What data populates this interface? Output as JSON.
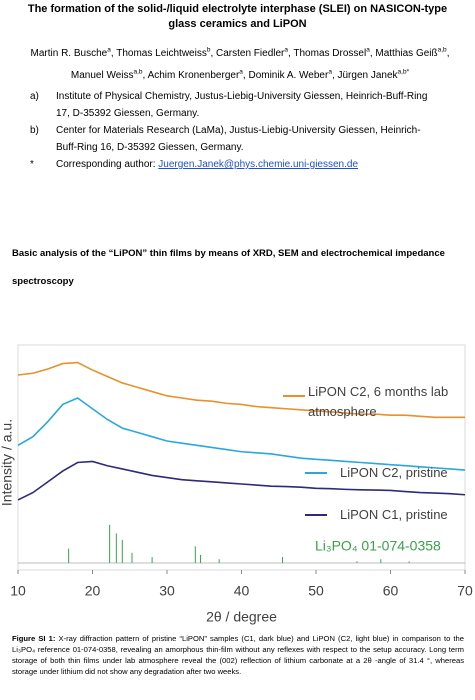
{
  "title": "The formation of the solid-/liquid electrolyte interphase (SLEI) on NASICON-type glass ceramics and LiPON",
  "authors": [
    {
      "name": "Martin R. Busche",
      "affil": "a"
    },
    {
      "name": "Thomas Leichtweiss",
      "affil": "b"
    },
    {
      "name": "Carsten Fiedler",
      "affil": "a"
    },
    {
      "name": "Thomas Drossel",
      "affil": "a"
    },
    {
      "name": "Matthias Geiß",
      "affil": "a,b"
    },
    {
      "name": "Manuel Weiss",
      "affil": "a,b"
    },
    {
      "name": "Achim Kronenberger",
      "affil": "a"
    },
    {
      "name": "Dominik A. Weber",
      "affil": "a"
    },
    {
      "name": "Jürgen Janek",
      "affil": "a,b*"
    }
  ],
  "affiliations": [
    {
      "marker": "a)",
      "text": "Institute of Physical Chemistry, Justus-Liebig-University Giessen, Heinrich-Buff-Ring 17, D-35392 Giessen, Germany."
    },
    {
      "marker": "b)",
      "text": "Center for Materials Research (LaMa), Justus-Liebig-University Giessen, Heinrich-Buff-Ring 16, D-35392 Giessen, Germany."
    }
  ],
  "corresponding": {
    "marker": "*",
    "text": "Corresponding author:",
    "email": "Juergen.Janek@phys.chemie.uni-giessen.de"
  },
  "heading": "Basic analysis of the “LiPON” thin films by means of XRD, SEM and electrochemical impedance spectroscopy",
  "chart_data": {
    "type": "line",
    "xlabel": "2θ / degree",
    "ylabel": "Intensity / a.u.",
    "xlim": [
      10,
      70
    ],
    "xticks": [
      10,
      20,
      30,
      40,
      50,
      60,
      70
    ],
    "ylim": [
      0,
      100
    ],
    "x": [
      10,
      12,
      14,
      16,
      18,
      20,
      22,
      24,
      26,
      28,
      30,
      32,
      34,
      36,
      38,
      40,
      42,
      44,
      46,
      48,
      50,
      52,
      54,
      56,
      58,
      60,
      62,
      64,
      66,
      68,
      70
    ],
    "series": [
      {
        "name": "LiPON C2, 6 months lab atmosphere",
        "color": "#e8912c",
        "values": [
          90.7,
          91.5,
          93.5,
          96,
          96.5,
          93,
          90,
          87,
          85,
          83,
          81,
          80,
          79,
          78.5,
          77.5,
          77,
          76,
          75.5,
          75,
          74.5,
          74,
          73.5,
          73,
          72.5,
          72.5,
          72,
          72,
          71.5,
          71,
          71,
          71
        ]
      },
      {
        "name": "LiPON C2, pristine",
        "color": "#2ba7df",
        "values": [
          58,
          62,
          69,
          77,
          80,
          75,
          70,
          66,
          64,
          62,
          60,
          59,
          58,
          57,
          56,
          55,
          54.5,
          54,
          53,
          52,
          51.5,
          51,
          50.5,
          50,
          49.5,
          49,
          48.5,
          48,
          47.5,
          47,
          46.5
        ]
      },
      {
        "name": "LiPON C1, pristine",
        "color": "#2e2a7a",
        "values": [
          32.6,
          36,
          41,
          46,
          50,
          50.5,
          48.5,
          47,
          45.5,
          44,
          43,
          42,
          41.5,
          41,
          40.5,
          40,
          39.5,
          39,
          38.8,
          38.5,
          38,
          37.8,
          37.5,
          37.3,
          37.2,
          37,
          36.5,
          36,
          35.8,
          35.5,
          35
        ]
      }
    ],
    "reference": {
      "name": "Li₃PO₄  01-074-0358",
      "color": "#3aa14a",
      "x": [
        16.8,
        22.3,
        23.2,
        24.0,
        25.3,
        28.0,
        33.8,
        34.5,
        37.0,
        45.5,
        55.5,
        58.7,
        62.5
      ],
      "values": [
        10,
        21,
        17,
        14,
        8,
        6,
        11,
        7,
        5,
        6,
        4,
        5,
        4
      ]
    }
  },
  "caption": {
    "label": "Figure SI 1:",
    "text": "X-ray diffraction pattern of pristine “LiPON” samples (C1, dark blue) and LiPON (C2, light blue) in comparison to the Li₃PO₄ reference 01-074-0358, revealing an amorphous thin-film without any reflexes with respect to the setup accuracy. Long term storage of both thin films under lab atmosphere reveal the (002) reflection of lithium carbonate at a 2θ -angle of 31.4 °, whereas storage under lithium did not show any degradation after two weeks."
  }
}
